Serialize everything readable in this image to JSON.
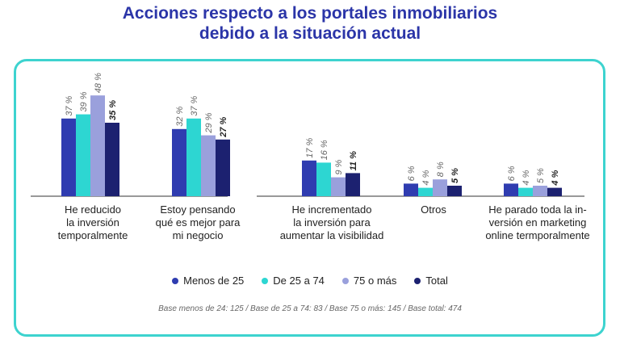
{
  "chart_data": {
    "type": "bar",
    "title": [
      "Acciones respecto a los portales inmobiliarios",
      "debido a la situación actual"
    ],
    "categories": [
      "He reducido\nla inversión\ntemporalmente",
      "Estoy pensando\nqué es mejor para\nmi negocio",
      "He incrementado\nla inversión para\naumentar la visibilidad",
      "Otros",
      "He parado toda la in-\nversión en marketing\nonline termporalmente"
    ],
    "series": [
      {
        "name": "Menos de 25",
        "values": [
          37,
          32,
          17,
          6,
          6
        ],
        "color": "#2f3cb0"
      },
      {
        "name": "De 25 a 74",
        "values": [
          39,
          37,
          16,
          4,
          4
        ],
        "color": "#2dd6d2"
      },
      {
        "name": "75 o más",
        "values": [
          48,
          29,
          9,
          8,
          5
        ],
        "color": "#9aa0dc"
      },
      {
        "name": "Total",
        "values": [
          35,
          27,
          11,
          5,
          4
        ],
        "color": "#1c2170"
      }
    ],
    "value_suffix": " %",
    "ylim": [
      0,
      50
    ],
    "legend_position": "bottom",
    "grid": false,
    "note": "Base menos de 24: 125 / Base de 25 a 74: 83 / Base 75 o más: 145 / Base total: 474"
  }
}
